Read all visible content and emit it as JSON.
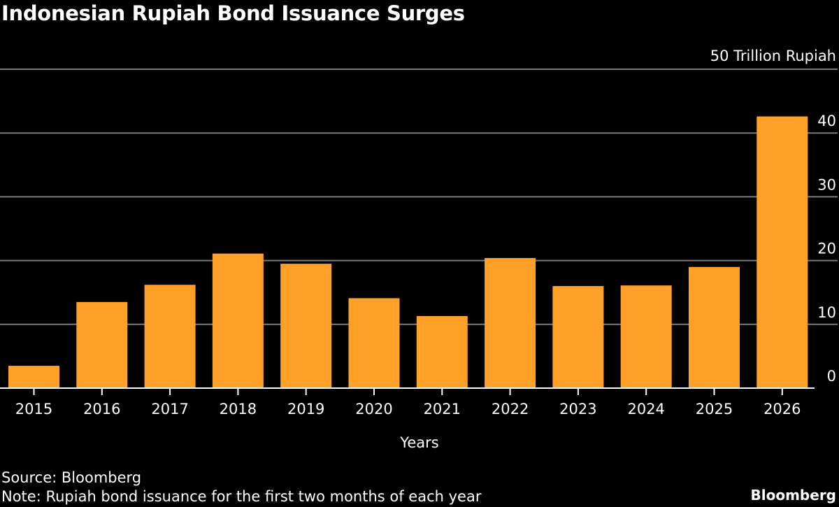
{
  "title": "Indonesian Rupiah Bond Issuance Surges",
  "source": "Source: Bloomberg",
  "note": "Note: Rupiah bond issuance for the first two months of each year",
  "brand": "Bloomberg",
  "chart_data": {
    "type": "bar",
    "title": "Indonesian Rupiah Bond Issuance Surges",
    "xlabel": "Years",
    "ylabel": "",
    "unit_label": "50 Trillion Rupiah",
    "categories": [
      "2015",
      "2016",
      "2017",
      "2018",
      "2019",
      "2020",
      "2021",
      "2022",
      "2023",
      "2024",
      "2025",
      "2026"
    ],
    "values": [
      3.5,
      13.5,
      16.2,
      21.1,
      19.5,
      14.1,
      11.3,
      20.4,
      16.0,
      16.1,
      19.0,
      42.6
    ],
    "ylim": [
      0,
      50
    ],
    "yticks": [
      "0",
      "10",
      "20",
      "30",
      "40"
    ],
    "grid": true,
    "bar_color": "#ffa028",
    "background": "#000000"
  }
}
